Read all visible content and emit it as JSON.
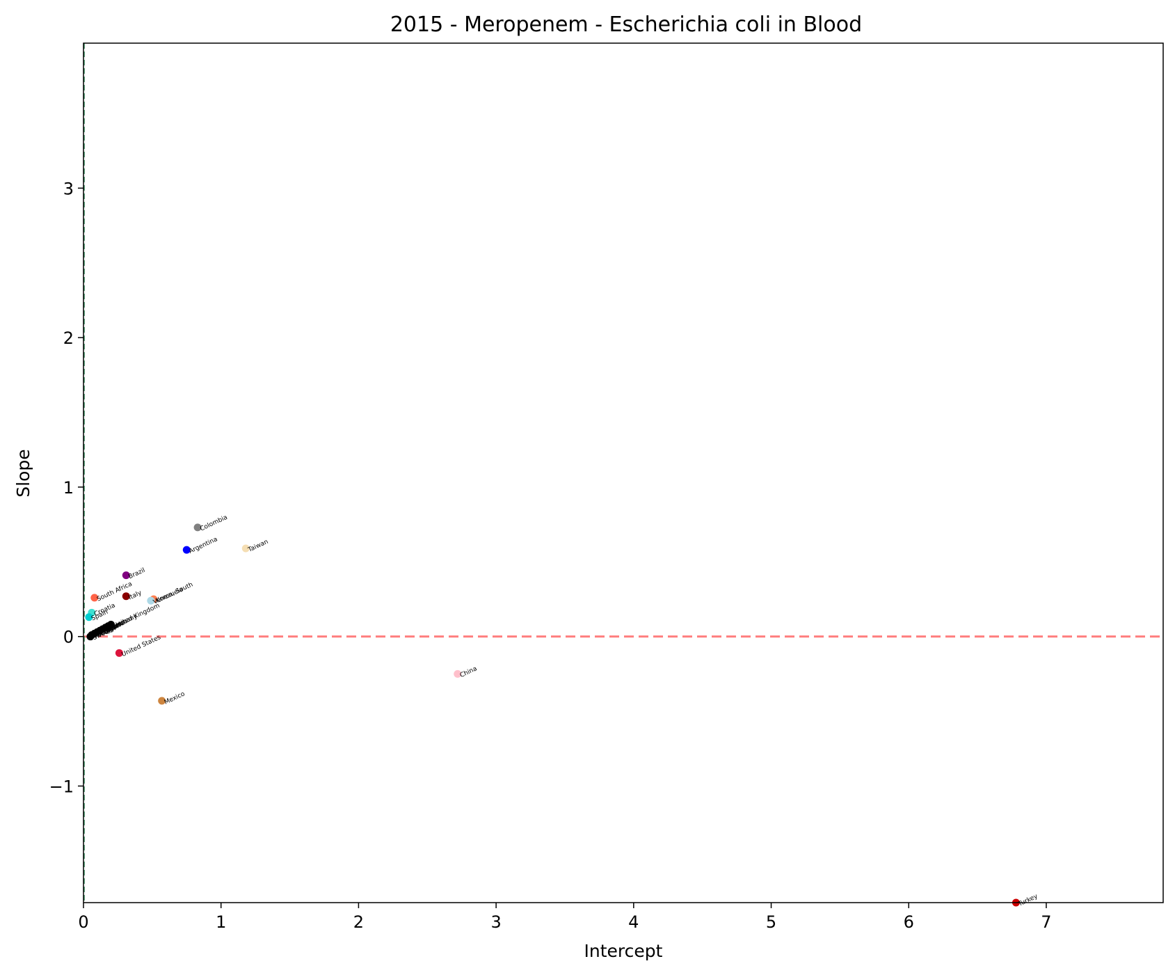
{
  "chart_data": {
    "type": "scatter",
    "title": "2015 - Meropenem - Escherichia coli in Blood",
    "xlabel": "Intercept",
    "ylabel": "Slope",
    "xlim": [
      0,
      7.85
    ],
    "ylim": [
      -1.78,
      3.97
    ],
    "xticks": [
      0,
      1,
      2,
      3,
      4,
      5,
      6,
      7
    ],
    "yticks": [
      -1,
      0,
      1,
      2,
      3
    ],
    "reference_lines": [
      {
        "orientation": "horizontal",
        "value": 0,
        "color": "#ff7f7f",
        "style": "dashed"
      },
      {
        "orientation": "vertical",
        "value": 0,
        "color": "#2e8b57",
        "style": "dashed"
      }
    ],
    "points": [
      {
        "label": "Turkey",
        "x": 6.78,
        "y": -1.78,
        "color": "#cc0000"
      },
      {
        "label": "China",
        "x": 2.72,
        "y": -0.25,
        "color": "#ffc0cb"
      },
      {
        "label": "Mexico",
        "x": 0.57,
        "y": -0.43,
        "color": "#cd853f"
      },
      {
        "label": "United States",
        "x": 0.26,
        "y": -0.11,
        "color": "#dc143c"
      },
      {
        "label": "Colombia",
        "x": 0.83,
        "y": 0.73,
        "color": "#808080"
      },
      {
        "label": "Argentina",
        "x": 0.75,
        "y": 0.58,
        "color": "#0000ff"
      },
      {
        "label": "Taiwan",
        "x": 1.18,
        "y": 0.59,
        "color": "#f5deb3"
      },
      {
        "label": "Brazil",
        "x": 0.31,
        "y": 0.41,
        "color": "#800080"
      },
      {
        "label": "Italy",
        "x": 0.31,
        "y": 0.27,
        "color": "#8b0000"
      },
      {
        "label": "South Africa",
        "x": 0.08,
        "y": 0.26,
        "color": "#ff6347"
      },
      {
        "label": "Korea, South",
        "x": 0.51,
        "y": 0.25,
        "color": "#ff7f50"
      },
      {
        "label": "Venezuela",
        "x": 0.49,
        "y": 0.24,
        "color": "#add8e6"
      },
      {
        "label": "Croatia",
        "x": 0.06,
        "y": 0.16,
        "color": "#40e0d0"
      },
      {
        "label": "Spain",
        "x": 0.04,
        "y": 0.13,
        "color": "#00ced1"
      },
      {
        "label": "United Kingdom",
        "x": 0.2,
        "y": 0.08,
        "color": "#000000"
      },
      {
        "label": "Germany",
        "x": 0.18,
        "y": 0.07,
        "color": "#000000"
      },
      {
        "label": "France",
        "x": 0.16,
        "y": 0.06,
        "color": "#000000"
      },
      {
        "label": "Japan",
        "x": 0.14,
        "y": 0.05,
        "color": "#000000"
      },
      {
        "label": "Canada",
        "x": 0.12,
        "y": 0.04,
        "color": "#000000"
      },
      {
        "label": "Israel",
        "x": 0.1,
        "y": 0.03,
        "color": "#000000"
      },
      {
        "label": "Belgium",
        "x": 0.08,
        "y": 0.02,
        "color": "#000000"
      },
      {
        "label": "Portugal",
        "x": 0.06,
        "y": 0.01,
        "color": "#000000"
      },
      {
        "label": "Sweden",
        "x": 0.05,
        "y": 0.0,
        "color": "#000000"
      }
    ]
  }
}
